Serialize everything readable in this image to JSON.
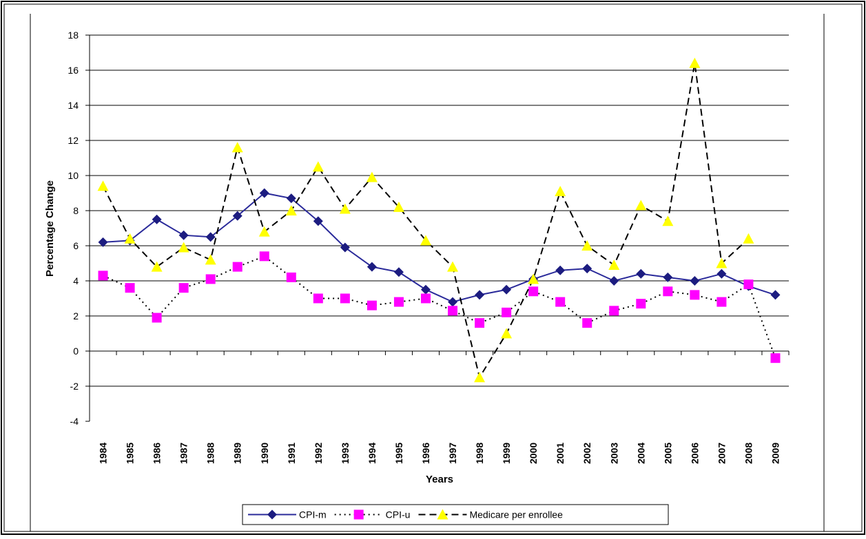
{
  "chart_data": {
    "type": "line",
    "x_label": "Years",
    "y_label": "Percentage Change",
    "categories": [
      "1984",
      "1985",
      "1986",
      "1987",
      "1988",
      "1989",
      "1990",
      "1991",
      "1992",
      "1993",
      "1994",
      "1995",
      "1996",
      "1997",
      "1998",
      "1999",
      "2000",
      "2001",
      "2002",
      "2003",
      "2004",
      "2005",
      "2006",
      "2007",
      "2008",
      "2009"
    ],
    "series": [
      {
        "name": "CPI-m",
        "color": "#1c1c80",
        "line_color": "#2a2a9a",
        "marker": "diamond",
        "dash": "solid",
        "values": [
          6.2,
          6.3,
          7.5,
          6.6,
          6.5,
          7.7,
          9.0,
          8.7,
          7.4,
          5.9,
          4.8,
          4.5,
          3.5,
          2.8,
          3.2,
          3.5,
          4.1,
          4.6,
          4.7,
          4.0,
          4.4,
          4.2,
          4.0,
          4.4,
          3.7,
          3.2
        ]
      },
      {
        "name": "CPI-u",
        "color": "#ff00ff",
        "line_color": "#000000",
        "marker": "square",
        "dash": "dotted",
        "values": [
          4.3,
          3.6,
          1.9,
          3.6,
          4.1,
          4.8,
          5.4,
          4.2,
          3.0,
          3.0,
          2.6,
          2.8,
          3.0,
          2.3,
          1.6,
          2.2,
          3.4,
          2.8,
          1.6,
          2.3,
          2.7,
          3.4,
          3.2,
          2.8,
          3.8,
          -0.4
        ]
      },
      {
        "name": "Medicare per enrollee",
        "color": "#ffff00",
        "line_color": "#000000",
        "marker": "triangle",
        "dash": "dashed",
        "values": [
          9.4,
          6.4,
          4.8,
          5.9,
          5.2,
          11.6,
          6.8,
          8.0,
          10.5,
          8.1,
          9.9,
          8.2,
          6.3,
          4.8,
          -1.5,
          1.0,
          4.1,
          9.1,
          6.0,
          4.9,
          8.3,
          7.4,
          16.4,
          5.0,
          6.4,
          null
        ]
      }
    ],
    "ylim": [
      -4,
      18
    ],
    "yticks": [
      -4,
      -2,
      0,
      2,
      4,
      6,
      8,
      10,
      12,
      14,
      16,
      18
    ],
    "grid": true,
    "legend": "bottom"
  }
}
